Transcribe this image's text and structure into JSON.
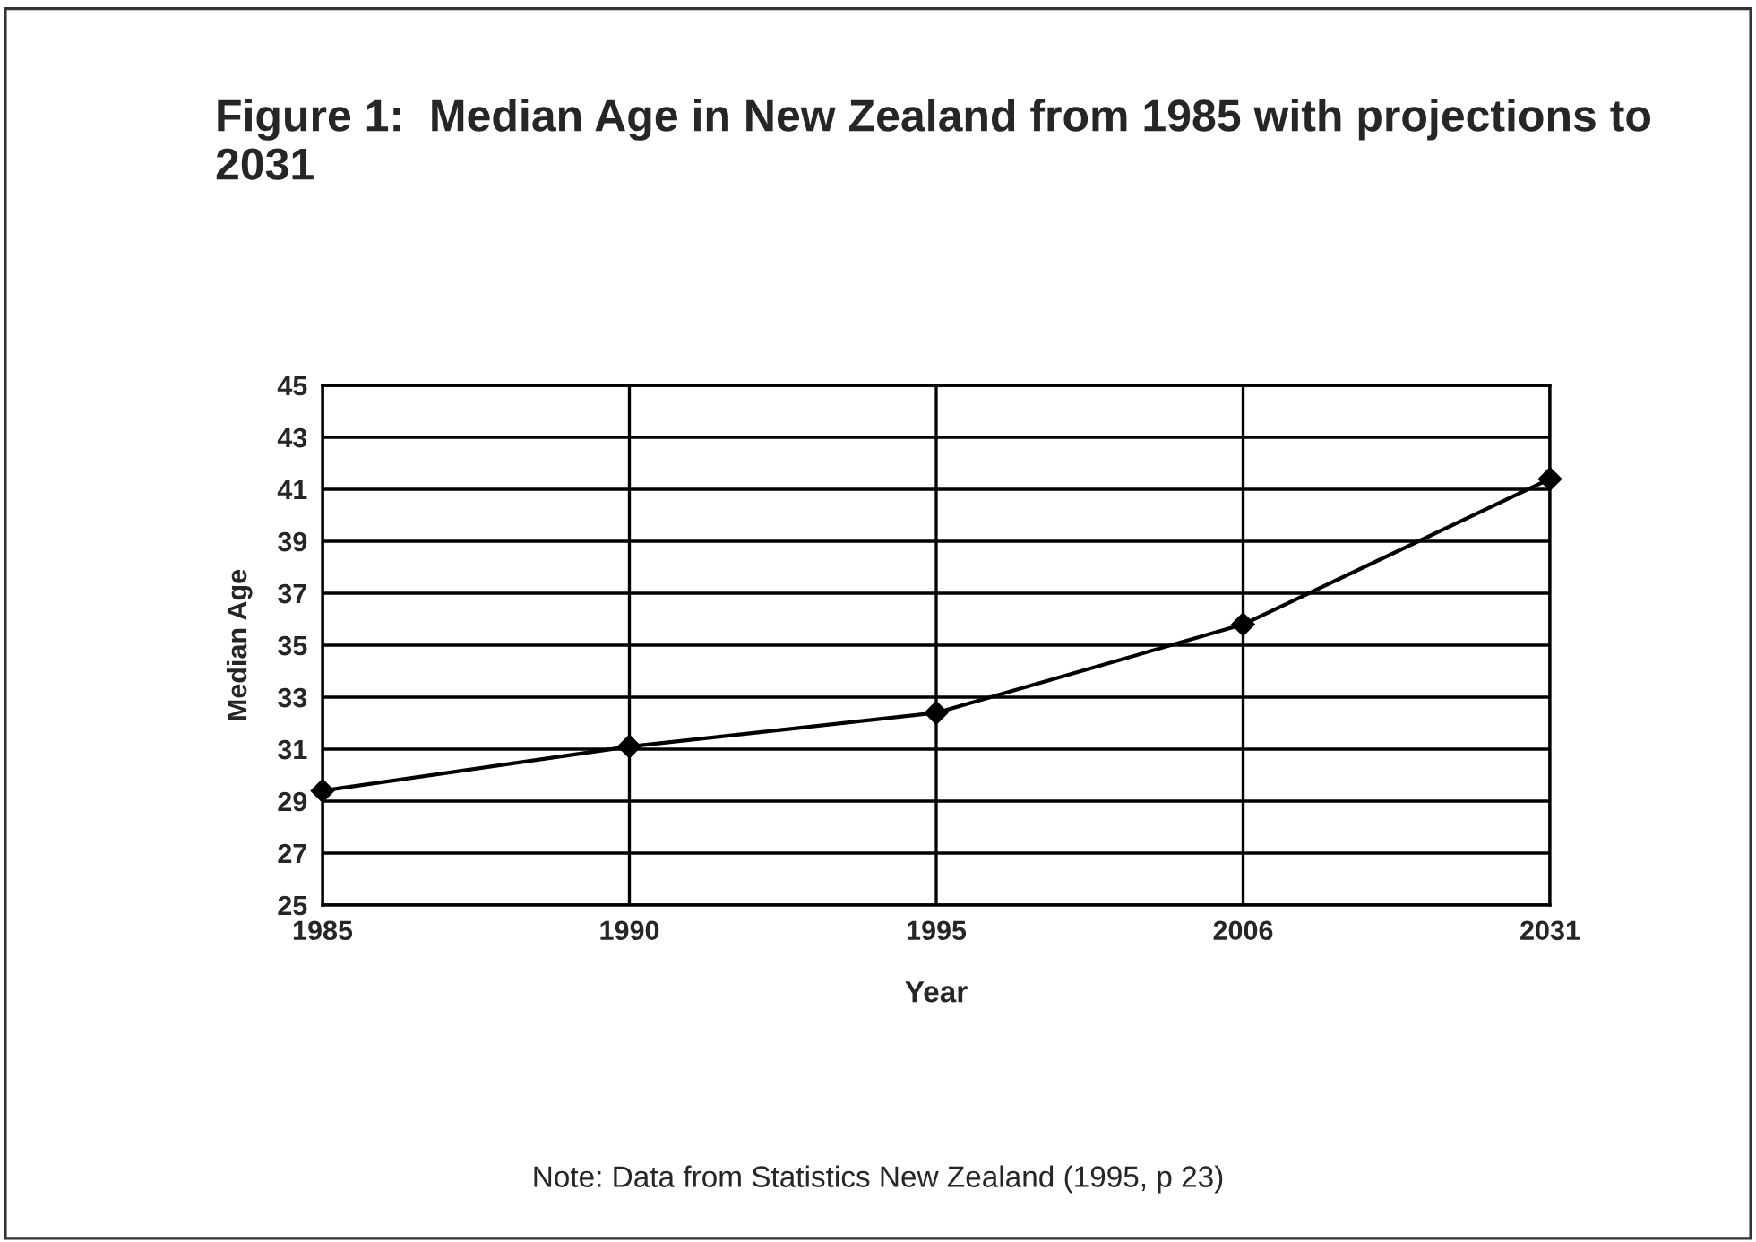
{
  "chart_data": {
    "type": "line",
    "title": "Figure 1:  Median Age in New Zealand from 1985 with projections to 2031",
    "categories": [
      "1985",
      "1990",
      "1995",
      "2006",
      "2031"
    ],
    "series": [
      {
        "color": "#000000",
        "values": [
          29.4,
          31.1,
          32.4,
          35.8,
          41.4
        ]
      }
    ],
    "xlabel": "Year",
    "ylabel": "Median Age",
    "ylim": [
      25,
      45
    ],
    "yticks": [
      25,
      27,
      29,
      31,
      33,
      35,
      37,
      39,
      41,
      43,
      45
    ],
    "grid": true,
    "marker": "diamond",
    "line_style": "solid",
    "legend": false,
    "annotations": [
      "Note: Data from Statistics New Zealand (1995, p 23)"
    ]
  }
}
